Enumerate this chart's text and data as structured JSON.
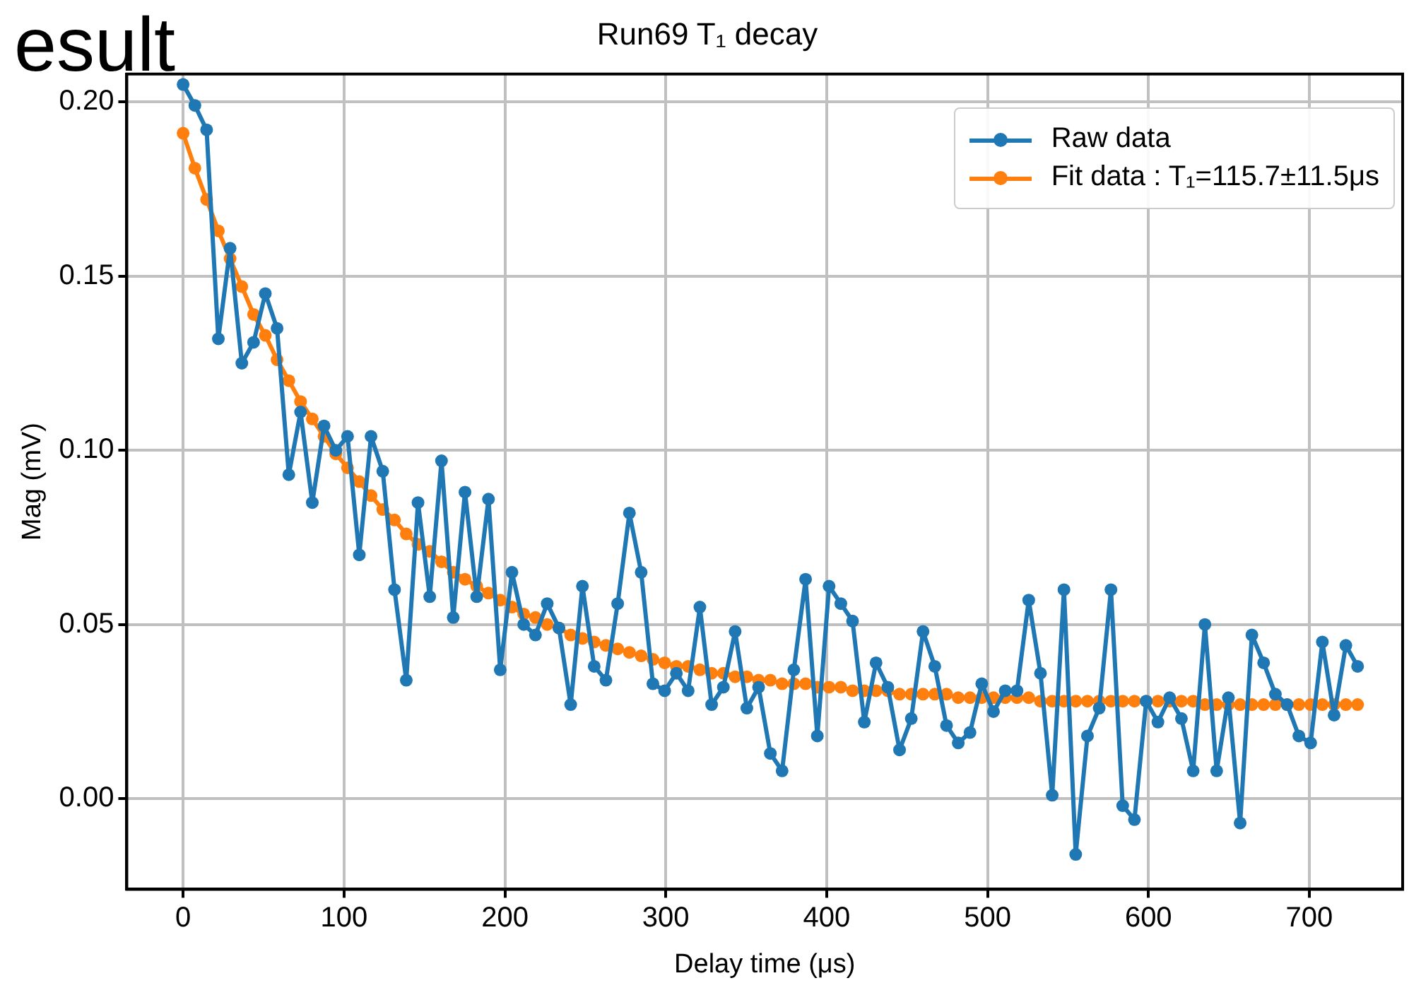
{
  "chart_data": {
    "type": "line",
    "title": "Run69 T₁ decay",
    "xlabel": "Delay time (μs)",
    "ylabel": "Mag (mV)",
    "annotations": [
      "esult"
    ],
    "xlim": [
      -35,
      758
    ],
    "xticks": [
      0,
      100,
      200,
      300,
      400,
      500,
      600,
      700
    ],
    "ylim": [
      -0.026,
      0.208
    ],
    "yticks": [
      {
        "value": 0,
        "label": "0.00"
      },
      {
        "value": 0.05,
        "label": "0.05"
      },
      {
        "value": 0.1,
        "label": "0.10"
      },
      {
        "value": 0.15,
        "label": "0.15"
      },
      {
        "value": 0.2,
        "label": "0.20"
      }
    ],
    "grid": true,
    "legend": "top right",
    "marker": "circle",
    "line_style": "solid",
    "x": [
      0,
      7.3,
      14.6,
      21.9,
      29.2,
      36.5,
      43.8,
      51.1,
      58.4,
      65.7,
      73,
      80.3,
      87.6,
      94.9,
      102.2,
      109.5,
      116.8,
      124.1,
      131.4,
      138.7,
      146,
      153.3,
      160.6,
      167.9,
      175.2,
      182.5,
      189.8,
      197.1,
      204.4,
      211.7,
      219,
      226.3,
      233.6,
      240.9,
      248.2,
      255.5,
      262.8,
      270.1,
      277.4,
      284.7,
      292,
      299.3,
      306.6,
      313.9,
      321.2,
      328.5,
      335.8,
      343.1,
      350.4,
      357.7,
      365,
      372.3,
      379.6,
      386.9,
      394.2,
      401.5,
      408.8,
      416.1,
      423.4,
      430.7,
      438,
      445.3,
      452.6,
      459.9,
      467.2,
      474.5,
      481.8,
      489.1,
      496.4,
      503.7,
      511,
      518.3,
      525.6,
      532.9,
      540.2,
      547.5,
      554.8,
      562.1,
      569.4,
      576.7,
      584,
      591.3,
      598.6,
      605.9,
      613.2,
      620.5,
      627.8,
      635.1,
      642.4,
      649.7,
      657,
      664.3,
      671.6,
      678.9,
      686.2,
      693.5,
      700.8,
      708.1,
      715.4,
      722.7,
      730
    ],
    "series": [
      {
        "name": "Raw data",
        "color": "#1f77b4",
        "values": [
          0.205,
          0.199,
          0.192,
          0.132,
          0.158,
          0.125,
          0.131,
          0.145,
          0.135,
          0.093,
          0.111,
          0.085,
          0.107,
          0.1,
          0.104,
          0.07,
          0.104,
          0.094,
          0.06,
          0.034,
          0.085,
          0.058,
          0.097,
          0.052,
          0.088,
          0.058,
          0.086,
          0.037,
          0.065,
          0.05,
          0.047,
          0.056,
          0.049,
          0.027,
          0.061,
          0.038,
          0.034,
          0.056,
          0.082,
          0.065,
          0.033,
          0.031,
          0.036,
          0.031,
          0.055,
          0.027,
          0.032,
          0.048,
          0.026,
          0.032,
          0.013,
          0.008,
          0.037,
          0.063,
          0.018,
          0.061,
          0.056,
          0.051,
          0.022,
          0.039,
          0.032,
          0.014,
          0.023,
          0.048,
          0.038,
          0.021,
          0.016,
          0.019,
          0.033,
          0.025,
          0.031,
          0.031,
          0.057,
          0.036,
          0.001,
          0.06,
          -0.016,
          0.018,
          0.026,
          0.06,
          -0.002,
          -0.006,
          0.028,
          0.022,
          0.029,
          0.023,
          0.008,
          0.05,
          0.008,
          0.029,
          -0.007,
          0.047,
          0.039,
          0.03,
          0.027,
          0.018,
          0.016,
          0.045,
          0.024,
          0.044,
          0.038
        ]
      },
      {
        "name": "Fit data : T₁=115.7±11.5μs",
        "color": "#ff7f0e",
        "values": [
          0.191,
          0.181,
          0.172,
          0.163,
          0.155,
          0.147,
          0.139,
          0.133,
          0.126,
          0.12,
          0.114,
          0.109,
          0.104,
          0.099,
          0.095,
          0.091,
          0.087,
          0.083,
          0.08,
          0.076,
          0.073,
          0.071,
          0.068,
          0.065,
          0.063,
          0.061,
          0.059,
          0.057,
          0.055,
          0.053,
          0.052,
          0.05,
          0.049,
          0.047,
          0.046,
          0.045,
          0.044,
          0.043,
          0.042,
          0.041,
          0.04,
          0.039,
          0.038,
          0.038,
          0.037,
          0.036,
          0.036,
          0.035,
          0.035,
          0.034,
          0.034,
          0.033,
          0.033,
          0.033,
          0.032,
          0.032,
          0.032,
          0.031,
          0.031,
          0.031,
          0.031,
          0.03,
          0.03,
          0.03,
          0.03,
          0.03,
          0.029,
          0.029,
          0.029,
          0.029,
          0.029,
          0.029,
          0.029,
          0.028,
          0.028,
          0.028,
          0.028,
          0.028,
          0.028,
          0.028,
          0.028,
          0.028,
          0.028,
          0.028,
          0.028,
          0.028,
          0.028,
          0.027,
          0.027,
          0.027,
          0.027,
          0.027,
          0.027,
          0.027,
          0.027,
          0.027,
          0.027,
          0.027,
          0.027,
          0.027,
          0.027
        ]
      }
    ]
  }
}
